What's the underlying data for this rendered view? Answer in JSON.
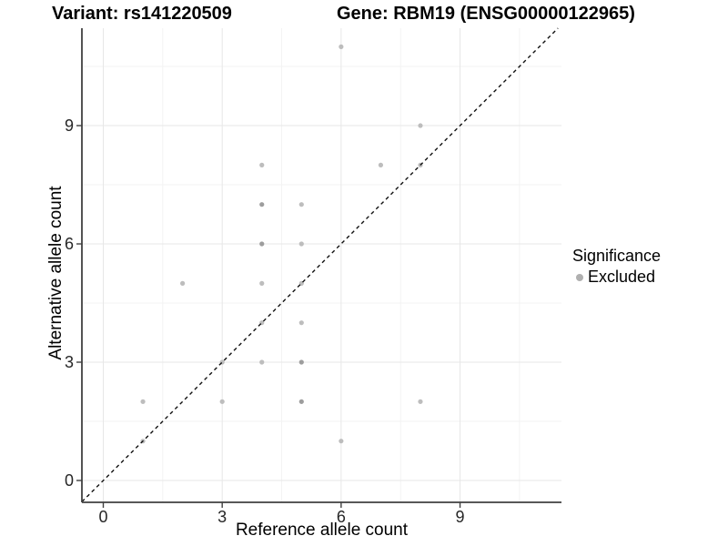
{
  "header": {
    "variant": "Variant: rs141220509",
    "gene": "Gene: RBM19 (ENSG00000122965)"
  },
  "axes": {
    "x_label": "Reference allele count",
    "y_label": "Alternative allele count"
  },
  "legend": {
    "title": "Significance",
    "items": [
      {
        "label": "Excluded",
        "color": "#b0b0b0"
      }
    ]
  },
  "colors": {
    "background": "#ffffff",
    "grid_major": "#e7e7e7",
    "grid_minor": "#f3f3f3",
    "axis_line": "#404040",
    "tick_label": "#262626",
    "dashed_line": "#111111",
    "point_light": "#bdbdbd",
    "point_dark": "#9d9d9d"
  },
  "chart_data": {
    "type": "scatter",
    "title": "Variant: rs141220509  Gene: RBM19 (ENSG00000122965)",
    "xlabel": "Reference allele count",
    "ylabel": "Alternative allele count",
    "xlim": [
      -0.54,
      11.6
    ],
    "ylim": [
      -0.55,
      11.5
    ],
    "x_major_ticks": [
      0,
      3,
      6,
      9
    ],
    "y_major_ticks": [
      0,
      3,
      6,
      9
    ],
    "x_minor_gridlines": [
      1.5,
      4.5,
      7.5,
      10.5
    ],
    "y_minor_gridlines": [
      1.5,
      4.5,
      7.5,
      10.5
    ],
    "grid": true,
    "legend_position": "right",
    "identity_line": {
      "slope": 1,
      "intercept": 0,
      "style": "dashed"
    },
    "series": [
      {
        "name": "Excluded",
        "marker": "circle",
        "points": [
          {
            "x": 6,
            "y": 11,
            "shade": "light"
          },
          {
            "x": 8,
            "y": 9,
            "shade": "light"
          },
          {
            "x": 4,
            "y": 8,
            "shade": "light"
          },
          {
            "x": 7,
            "y": 8,
            "shade": "light"
          },
          {
            "x": 8,
            "y": 8,
            "shade": "light"
          },
          {
            "x": 4,
            "y": 7,
            "shade": "dark"
          },
          {
            "x": 5,
            "y": 7,
            "shade": "light"
          },
          {
            "x": 4,
            "y": 6,
            "shade": "dark"
          },
          {
            "x": 5,
            "y": 6,
            "shade": "light"
          },
          {
            "x": 2,
            "y": 5,
            "shade": "light"
          },
          {
            "x": 4,
            "y": 5,
            "shade": "light"
          },
          {
            "x": 5,
            "y": 5,
            "shade": "light"
          },
          {
            "x": 4,
            "y": 4,
            "shade": "light"
          },
          {
            "x": 5,
            "y": 4,
            "shade": "light"
          },
          {
            "x": 3,
            "y": 3,
            "shade": "light"
          },
          {
            "x": 4,
            "y": 3,
            "shade": "light"
          },
          {
            "x": 5,
            "y": 3,
            "shade": "dark"
          },
          {
            "x": 1,
            "y": 2,
            "shade": "light"
          },
          {
            "x": 3,
            "y": 2,
            "shade": "light"
          },
          {
            "x": 5,
            "y": 2,
            "shade": "dark"
          },
          {
            "x": 8,
            "y": 2,
            "shade": "light"
          },
          {
            "x": 6,
            "y": 1,
            "shade": "light"
          },
          {
            "x": 1,
            "y": 1,
            "shade": "light"
          }
        ]
      }
    ]
  }
}
